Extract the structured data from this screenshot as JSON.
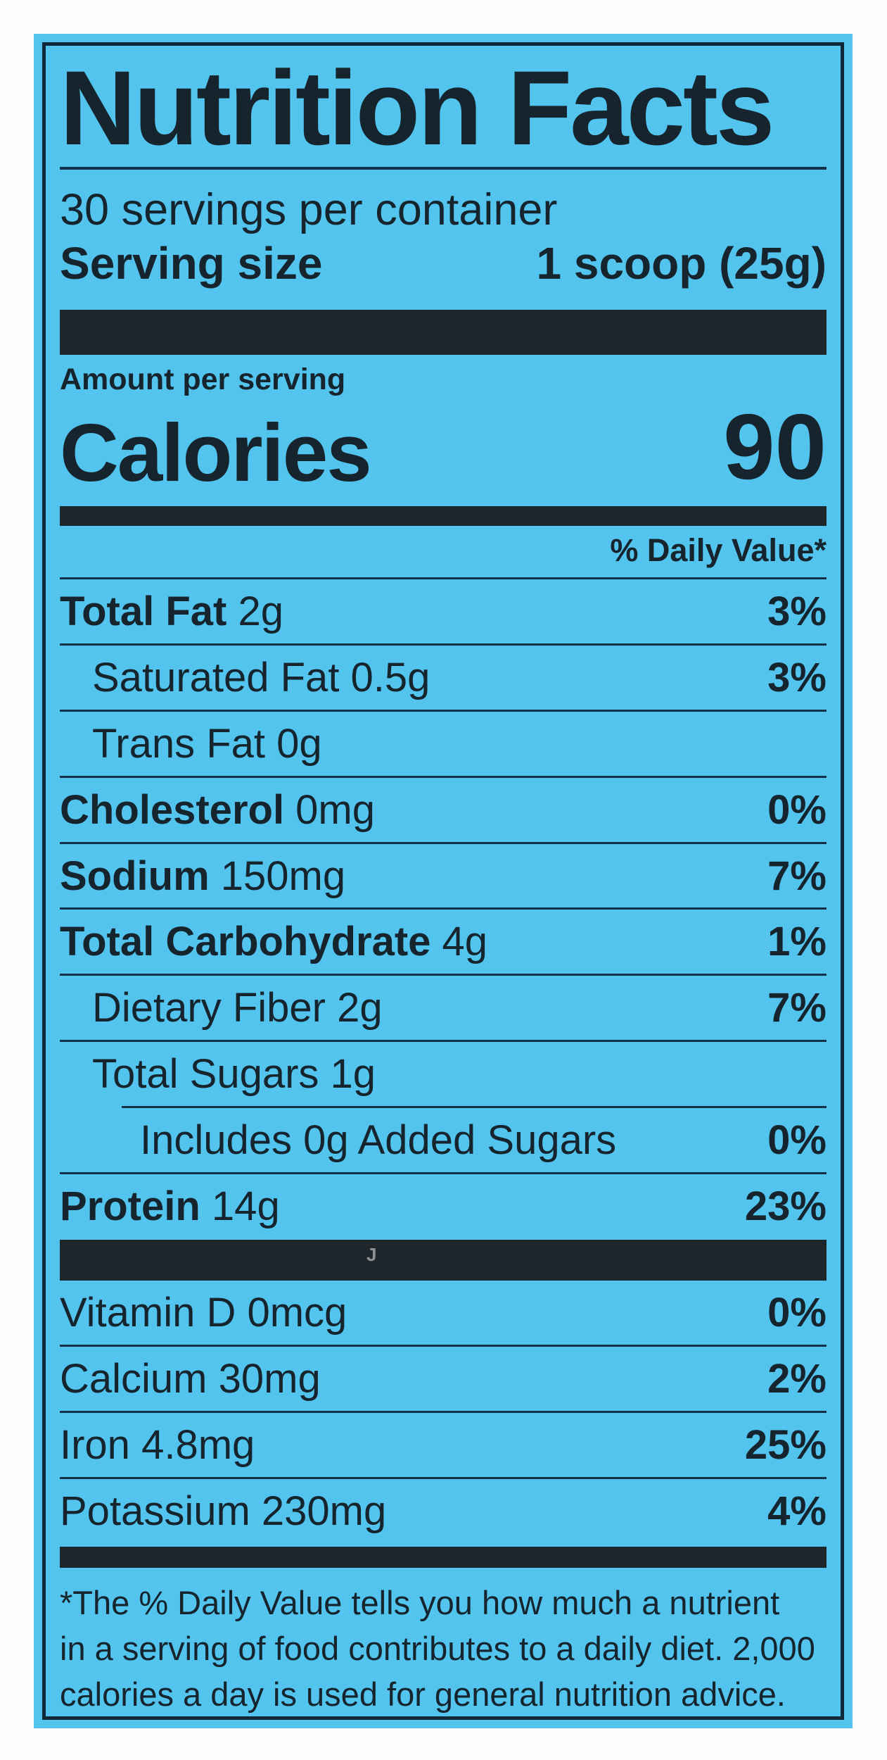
{
  "label": {
    "title": "Nutrition Facts",
    "servings_per_container": "30 servings per container",
    "serving_size_label": "Serving size",
    "serving_size_value": "1 scoop (25g)",
    "amount_per_serving": "Amount per serving",
    "calories_label": "Calories",
    "calories_value": "90",
    "daily_value_header": "% Daily Value*",
    "nutrients": [
      {
        "name": "Total Fat",
        "amount": "2g",
        "dv": "3%",
        "bold": true,
        "indent": 0
      },
      {
        "name": "Saturated Fat",
        "amount": "0.5g",
        "dv": "3%",
        "bold": false,
        "indent": 1
      },
      {
        "name": "Trans Fat",
        "amount": "0g",
        "dv": "",
        "bold": false,
        "indent": 1
      },
      {
        "name": "Cholesterol",
        "amount": "0mg",
        "dv": "0%",
        "bold": true,
        "indent": 0
      },
      {
        "name": "Sodium",
        "amount": "150mg",
        "dv": "7%",
        "bold": true,
        "indent": 0
      },
      {
        "name": "Total Carbohydrate",
        "amount": "4g",
        "dv": "1%",
        "bold": true,
        "indent": 0
      },
      {
        "name": "Dietary Fiber",
        "amount": "2g",
        "dv": "7%",
        "bold": false,
        "indent": 1
      },
      {
        "name": "Total Sugars",
        "amount": "1g",
        "dv": "",
        "bold": false,
        "indent": 1
      },
      {
        "name": "Includes 0g Added Sugars",
        "amount": "",
        "dv": "0%",
        "bold": false,
        "indent": 2,
        "rule_indent": true
      },
      {
        "name": "Protein",
        "amount": "14g",
        "dv": "23%",
        "bold": true,
        "indent": 0
      }
    ],
    "micronutrients": [
      {
        "name": "Vitamin D",
        "amount": "0mcg",
        "dv": "0%",
        "bold": false,
        "indent": 0
      },
      {
        "name": "Calcium",
        "amount": "30mg",
        "dv": "2%",
        "bold": false,
        "indent": 0
      },
      {
        "name": "Iron",
        "amount": "4.8mg",
        "dv": "25%",
        "bold": false,
        "indent": 0
      },
      {
        "name": "Potassium",
        "amount": "230mg",
        "dv": "4%",
        "bold": false,
        "indent": 0
      }
    ],
    "bar_artifact": "J",
    "footnote_lines": [
      "*The % Daily Value tells you how much a nutrient",
      "in a serving of food contributes to a daily diet. 2,000",
      "calories a day is used for general nutrition advice."
    ]
  },
  "colors": {
    "label_background": "#53c4ee",
    "ink": "#16242d",
    "page_background": "#ffffff"
  }
}
